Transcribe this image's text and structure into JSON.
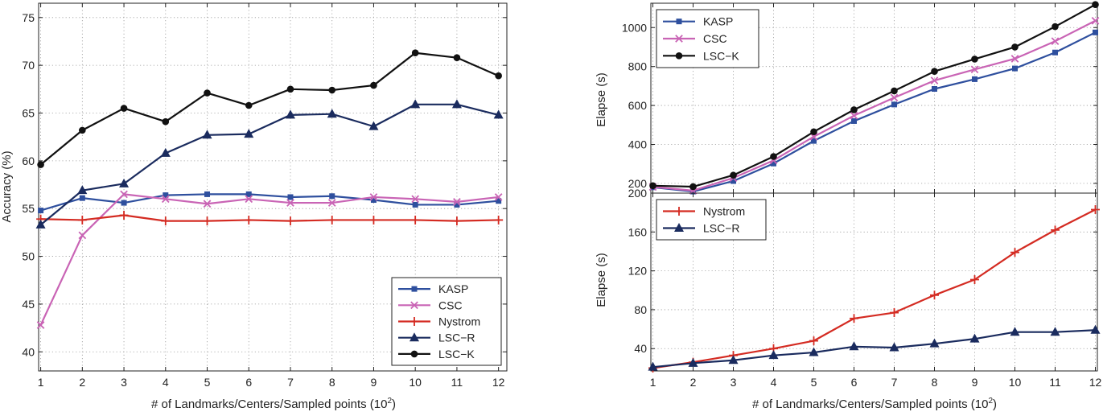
{
  "chart_data": [
    {
      "id": "accuracy",
      "type": "line",
      "title": "",
      "xlabel": "# of Landmarks/Centers/Sampled points (10",
      "xlabel_sup": "2",
      "xlabel_end": ")",
      "ylabel": "Accuracy (%)",
      "x": [
        1,
        2,
        3,
        4,
        5,
        6,
        7,
        8,
        9,
        10,
        11,
        12
      ],
      "xlim": [
        0.95,
        12.2
      ],
      "ylim": [
        38,
        76.5
      ],
      "xticks": [
        1,
        2,
        3,
        4,
        5,
        6,
        7,
        8,
        9,
        10,
        11,
        12
      ],
      "yticks": [
        40,
        45,
        50,
        55,
        60,
        65,
        70,
        75
      ],
      "grid": true,
      "legend": "bottom-right",
      "series": [
        {
          "name": "KASP",
          "color": "#2e4f9e",
          "marker": "square",
          "values": [
            54.8,
            56.1,
            55.6,
            56.4,
            56.5,
            56.5,
            56.2,
            56.3,
            55.9,
            55.4,
            55.4,
            55.8
          ]
        },
        {
          "name": "CSC",
          "color": "#c964b5",
          "marker": "x",
          "values": [
            42.8,
            52.2,
            56.5,
            56.0,
            55.5,
            56.0,
            55.6,
            55.6,
            56.2,
            56.0,
            55.7,
            56.2
          ]
        },
        {
          "name": "Nystrom",
          "color": "#d42b22",
          "marker": "plus",
          "values": [
            53.9,
            53.8,
            54.3,
            53.7,
            53.7,
            53.8,
            53.7,
            53.8,
            53.8,
            53.8,
            53.7,
            53.8
          ]
        },
        {
          "name": "LSC−R",
          "color": "#1a2b5e",
          "marker": "triangle",
          "values": [
            53.3,
            56.9,
            57.6,
            60.8,
            62.7,
            62.8,
            64.8,
            64.9,
            63.6,
            65.9,
            65.9,
            64.8
          ]
        },
        {
          "name": "LSC−K",
          "color": "#111111",
          "marker": "circle",
          "values": [
            59.6,
            63.2,
            65.5,
            64.1,
            67.1,
            65.8,
            67.5,
            67.4,
            67.9,
            71.3,
            70.8,
            68.9
          ]
        }
      ]
    },
    {
      "id": "elapse-top",
      "type": "line",
      "title": "",
      "xlabel": "",
      "ylabel": "Elapse (s)",
      "x": [
        1,
        2,
        3,
        4,
        5,
        6,
        7,
        8,
        9,
        10,
        11,
        12
      ],
      "xlim": [
        0.95,
        12.05
      ],
      "ylim": [
        150,
        1125
      ],
      "yticks": [
        200,
        400,
        600,
        800,
        1000
      ],
      "grid": true,
      "legend": "top-left",
      "series": [
        {
          "name": "KASP",
          "color": "#2e4f9e",
          "marker": "square",
          "values": [
            180,
            158,
            212,
            302,
            418,
            520,
            605,
            685,
            735,
            790,
            872,
            975
          ]
        },
        {
          "name": "CSC",
          "color": "#c964b5",
          "marker": "x",
          "values": [
            182,
            163,
            228,
            318,
            440,
            548,
            640,
            728,
            785,
            840,
            930,
            1035
          ]
        },
        {
          "name": "LSC−K",
          "color": "#111111",
          "marker": "circle",
          "values": [
            188,
            183,
            242,
            338,
            465,
            578,
            675,
            775,
            838,
            900,
            1005,
            1118
          ]
        }
      ]
    },
    {
      "id": "elapse-bottom",
      "type": "line",
      "title": "",
      "xlabel": "# of Landmarks/Centers/Sampled points (10",
      "xlabel_sup": "2",
      "xlabel_end": ")",
      "ylabel": "Elapse (s)",
      "x": [
        1,
        2,
        3,
        4,
        5,
        6,
        7,
        8,
        9,
        10,
        11,
        12
      ],
      "xlim": [
        0.95,
        12.05
      ],
      "ylim": [
        17,
        200
      ],
      "xticks": [
        1,
        2,
        3,
        4,
        5,
        6,
        7,
        8,
        9,
        10,
        11,
        12
      ],
      "yticks": [
        40,
        80,
        120,
        160,
        200
      ],
      "grid": true,
      "legend": "top-left",
      "series": [
        {
          "name": "Nystrom",
          "color": "#d42b22",
          "marker": "plus",
          "values": [
            20,
            26,
            33,
            40,
            48,
            71,
            77,
            95,
            111,
            139,
            162,
            183
          ]
        },
        {
          "name": "LSC−R",
          "color": "#1a2b5e",
          "marker": "triangle",
          "values": [
            21,
            25,
            28,
            33,
            36,
            42,
            41,
            45,
            50,
            57,
            57,
            59
          ]
        }
      ]
    }
  ]
}
